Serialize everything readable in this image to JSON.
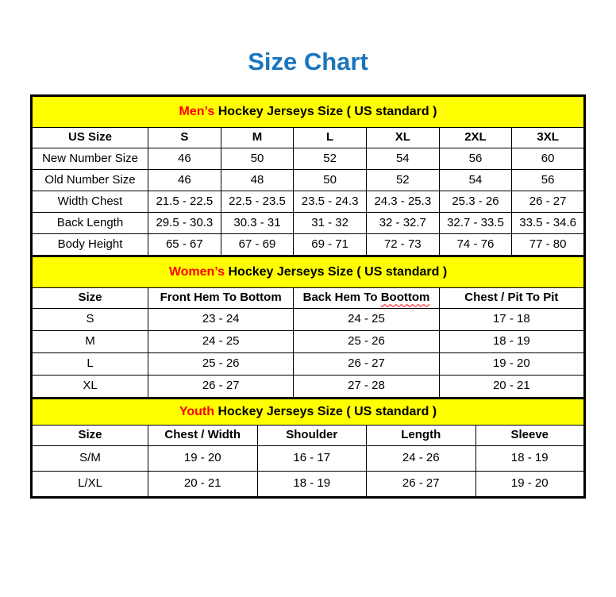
{
  "page": {
    "title": "Size Chart",
    "title_color": "#1B75BC",
    "band_bg": "#FFFF00",
    "accent_red": "#FF0000",
    "border_color": "#000000"
  },
  "tables": [
    {
      "section": {
        "highlight": "Men’s",
        "rest": "Hockey Jerseys Size ( US standard )"
      },
      "columns": [
        "US Size",
        "S",
        "M",
        "L",
        "XL",
        "2XL",
        "3XL"
      ],
      "rows": [
        {
          "label": "New Number Size",
          "values": [
            "46",
            "50",
            "52",
            "54",
            "56",
            "60"
          ]
        },
        {
          "label": "Old Number Size",
          "values": [
            "46",
            "48",
            "50",
            "52",
            "54",
            "56"
          ]
        },
        {
          "label": "Width Chest",
          "values": [
            "21.5 - 22.5",
            "22.5 - 23.5",
            "23.5 - 24.3",
            "24.3 - 25.3",
            "25.3 - 26",
            "26 - 27"
          ]
        },
        {
          "label": "Back Length",
          "values": [
            "29.5 - 30.3",
            "30.3 - 31",
            "31 - 32",
            "32 - 32.7",
            "32.7 - 33.5",
            "33.5 - 34.6"
          ]
        },
        {
          "label": "Body Height",
          "values": [
            "65 - 67",
            "67 - 69",
            "69 - 71",
            "72 - 73",
            "74 - 76",
            "77 - 80"
          ]
        }
      ]
    },
    {
      "section": {
        "highlight": "Women’s",
        "rest": "Hockey Jerseys Size ( US standard )"
      },
      "columns": [
        "Size",
        "Front Hem To Bottom",
        {
          "prefix": "Back Hem To ",
          "misspelled": "Boottom"
        },
        "Chest / Pit To Pit"
      ],
      "rows": [
        {
          "label": "S",
          "values": [
            "23 - 24",
            "24 - 25",
            "17 - 18"
          ]
        },
        {
          "label": "M",
          "values": [
            "24 - 25",
            "25 - 26",
            "18 - 19"
          ]
        },
        {
          "label": "L",
          "values": [
            "25 - 26",
            "26 - 27",
            "19 - 20"
          ]
        },
        {
          "label": "XL",
          "values": [
            "26 - 27",
            "27 - 28",
            "20 - 21"
          ]
        }
      ]
    },
    {
      "section": {
        "highlight": "Youth",
        "rest": "Hockey Jerseys Size ( US standard )"
      },
      "columns": [
        "Size",
        "Chest / Width",
        "Shoulder",
        "Length",
        "Sleeve"
      ],
      "rows": [
        {
          "label": "S/M",
          "values": [
            "19 - 20",
            "16 - 17",
            "24 - 26",
            "18 - 19"
          ]
        },
        {
          "label": "L/XL",
          "values": [
            "20 - 21",
            "18 - 19",
            "26 - 27",
            "19 - 20"
          ]
        }
      ]
    }
  ]
}
